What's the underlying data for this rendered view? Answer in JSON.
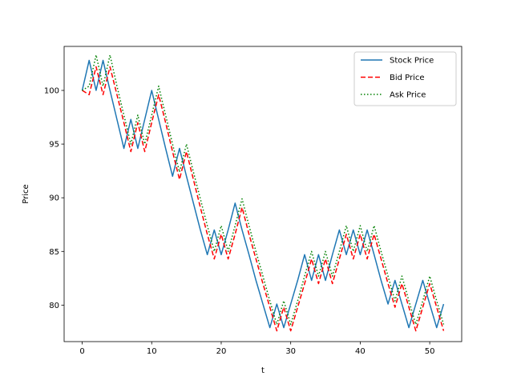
{
  "chart_data": {
    "type": "line",
    "title": "",
    "xlabel": "t",
    "ylabel": "Price",
    "xlim": [
      -2.6,
      54.6
    ],
    "ylim": [
      76.6,
      104.1
    ],
    "xticks": [
      0,
      10,
      20,
      30,
      40,
      50
    ],
    "yticks": [
      80,
      85,
      90,
      95,
      100
    ],
    "grid": false,
    "legend_position": "top-right",
    "x": [
      0,
      1,
      2,
      3,
      4,
      5,
      6,
      7,
      8,
      9,
      10,
      11,
      12,
      13,
      14,
      15,
      16,
      17,
      18,
      19,
      20,
      21,
      22,
      23,
      24,
      25,
      26,
      27,
      28,
      29,
      30,
      31,
      32,
      33,
      34,
      35,
      36,
      37,
      38,
      39,
      40,
      41,
      42,
      43,
      44,
      45,
      46,
      47,
      48,
      49,
      50,
      51,
      52
    ],
    "series": [
      {
        "name": "Stock Price",
        "color": "#1f77b4",
        "dash": "solid",
        "values": [
          100.0,
          102.8,
          100.0,
          102.8,
          100.0,
          97.3,
          94.6,
          97.3,
          94.6,
          97.3,
          100.0,
          97.3,
          94.6,
          92.0,
          94.6,
          92.0,
          89.5,
          87.0,
          84.7,
          87.0,
          84.7,
          87.0,
          89.5,
          87.0,
          84.7,
          82.3,
          80.1,
          77.9,
          80.1,
          77.9,
          80.1,
          82.3,
          84.7,
          82.3,
          84.7,
          82.3,
          84.7,
          87.0,
          84.7,
          87.0,
          84.7,
          87.0,
          84.7,
          82.3,
          80.1,
          82.3,
          80.1,
          77.9,
          80.1,
          82.3,
          80.1,
          77.9,
          80.1
        ]
      },
      {
        "name": "Bid Price",
        "color": "#ff0000",
        "dash": "dashed",
        "values": [
          100.0,
          99.6,
          102.2,
          99.6,
          102.2,
          99.6,
          97.0,
          94.3,
          97.0,
          94.3,
          97.0,
          99.6,
          97.0,
          94.3,
          91.7,
          94.3,
          91.7,
          89.1,
          86.6,
          84.3,
          86.6,
          84.3,
          86.6,
          89.1,
          86.6,
          84.3,
          82.0,
          79.8,
          77.6,
          79.8,
          77.6,
          79.8,
          82.0,
          84.3,
          82.0,
          84.3,
          82.0,
          84.3,
          86.6,
          84.3,
          86.6,
          84.3,
          86.6,
          84.3,
          82.0,
          79.8,
          82.0,
          79.8,
          77.6,
          79.8,
          82.0,
          79.8,
          77.6
        ]
      },
      {
        "name": "Ask Price",
        "color": "#008000",
        "dash": "dotted",
        "values": [
          100.0,
          100.4,
          103.3,
          100.4,
          103.3,
          100.4,
          97.7,
          95.0,
          97.7,
          95.0,
          97.7,
          100.4,
          97.7,
          95.0,
          92.4,
          95.0,
          92.4,
          89.9,
          87.4,
          85.0,
          87.4,
          85.0,
          87.4,
          89.9,
          87.4,
          85.0,
          82.7,
          80.4,
          78.2,
          80.4,
          78.2,
          80.4,
          82.7,
          85.0,
          82.7,
          85.0,
          82.7,
          85.0,
          87.4,
          85.0,
          87.4,
          85.0,
          87.4,
          85.0,
          82.7,
          80.4,
          82.7,
          80.4,
          78.2,
          80.4,
          82.7,
          80.4,
          78.2
        ]
      }
    ]
  }
}
